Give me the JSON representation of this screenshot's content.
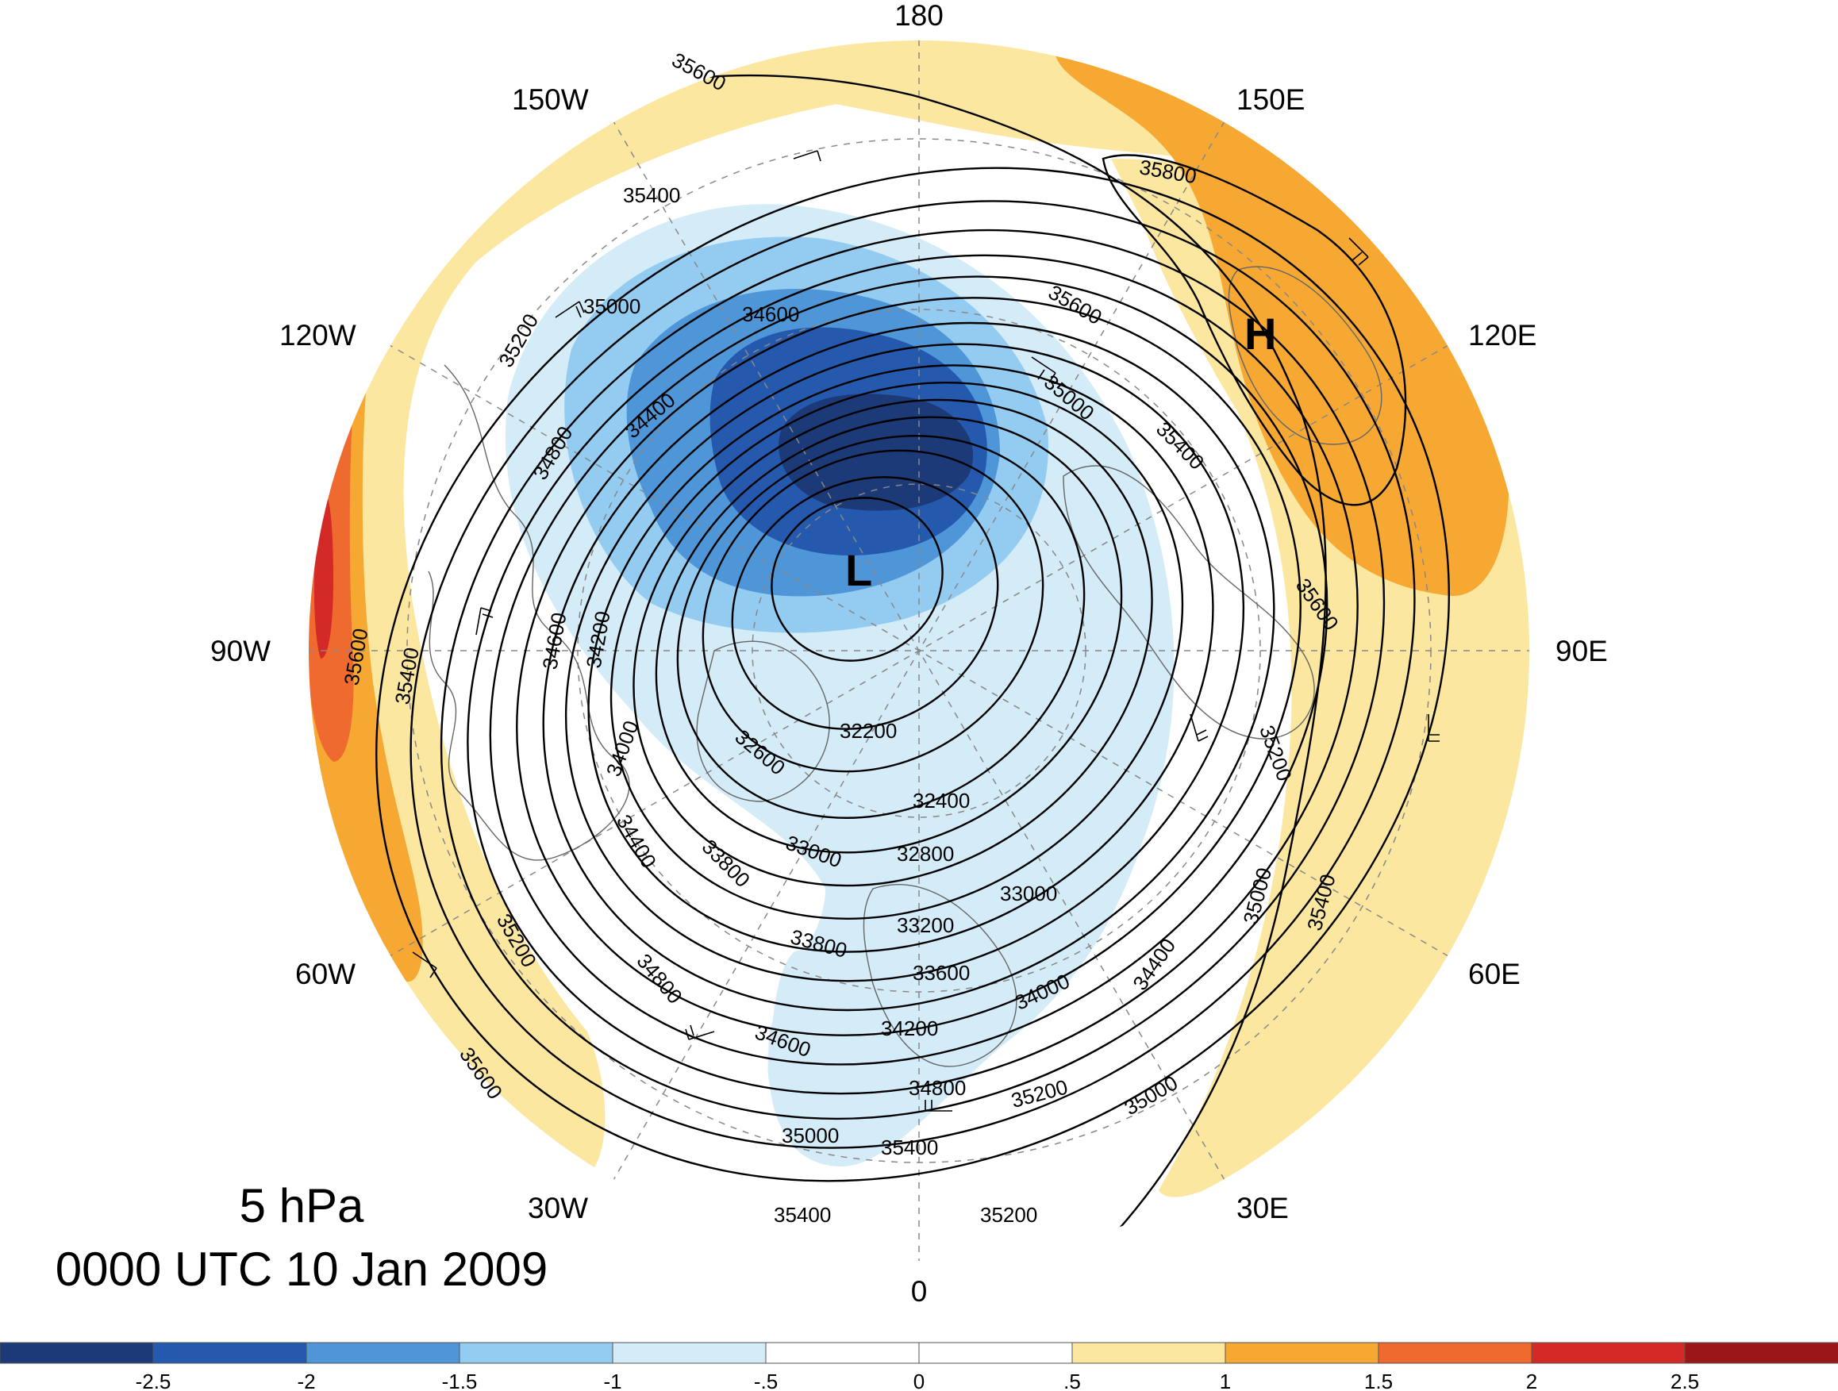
{
  "figure": {
    "level": "5 hPa",
    "datetime": "0000 UTC 10 Jan 2009",
    "projection": "north-polar-stereographic"
  },
  "longitude_labels": [
    {
      "text": "180",
      "lon": 180
    },
    {
      "text": "150E",
      "lon": 150
    },
    {
      "text": "120E",
      "lon": 120
    },
    {
      "text": "90E",
      "lon": 90
    },
    {
      "text": "60E",
      "lon": 60
    },
    {
      "text": "30E",
      "lon": 30
    },
    {
      "text": "0",
      "lon": 0
    },
    {
      "text": "30W",
      "lon": -30
    },
    {
      "text": "60W",
      "lon": -60
    },
    {
      "text": "90W",
      "lon": -90
    },
    {
      "text": "120W",
      "lon": -120
    },
    {
      "text": "150W",
      "lon": -150
    }
  ],
  "contour_labels": [
    "35600",
    "35400",
    "35200",
    "35000",
    "34600",
    "34400",
    "34800",
    "35800",
    "35600",
    "35000",
    "35400",
    "35600",
    "35200",
    "34200",
    "34600",
    "35400",
    "35600",
    "34000",
    "32600",
    "32200",
    "32400",
    "33000",
    "32800",
    "33000",
    "34400",
    "33800",
    "33200",
    "33800",
    "33600",
    "34000",
    "34400",
    "35000",
    "35400",
    "35200",
    "34800",
    "34200",
    "34600",
    "34800",
    "35200",
    "35000",
    "35000",
    "35400",
    "35400",
    "35200",
    "35600"
  ],
  "centers": [
    {
      "label": "L",
      "type": "low"
    },
    {
      "label": "H",
      "type": "high"
    }
  ],
  "colorbar": {
    "tick_labels": [
      "-2.5",
      "-2",
      "-1.5",
      "-1",
      "-.5",
      "0",
      ".5",
      "1",
      "1.5",
      "2",
      "2.5"
    ],
    "colors": [
      "#1c3978",
      "#2459ad",
      "#4f96d8",
      "#94ccf1",
      "#d4ebf8",
      "#ffffff",
      "#ffffff",
      "#fbe7a0",
      "#f6a833",
      "#ef6a2f",
      "#d42a27",
      "#9a1619"
    ]
  },
  "shading_colors": {
    "d1": "#d4ebf8",
    "d2": "#94ccf1",
    "d3": "#4f96d8",
    "d4": "#2459ad",
    "d5": "#1c3978",
    "p1": "#fbe7a0",
    "p2": "#f6a833",
    "p3": "#ef6a2f",
    "p4": "#d42a27"
  }
}
